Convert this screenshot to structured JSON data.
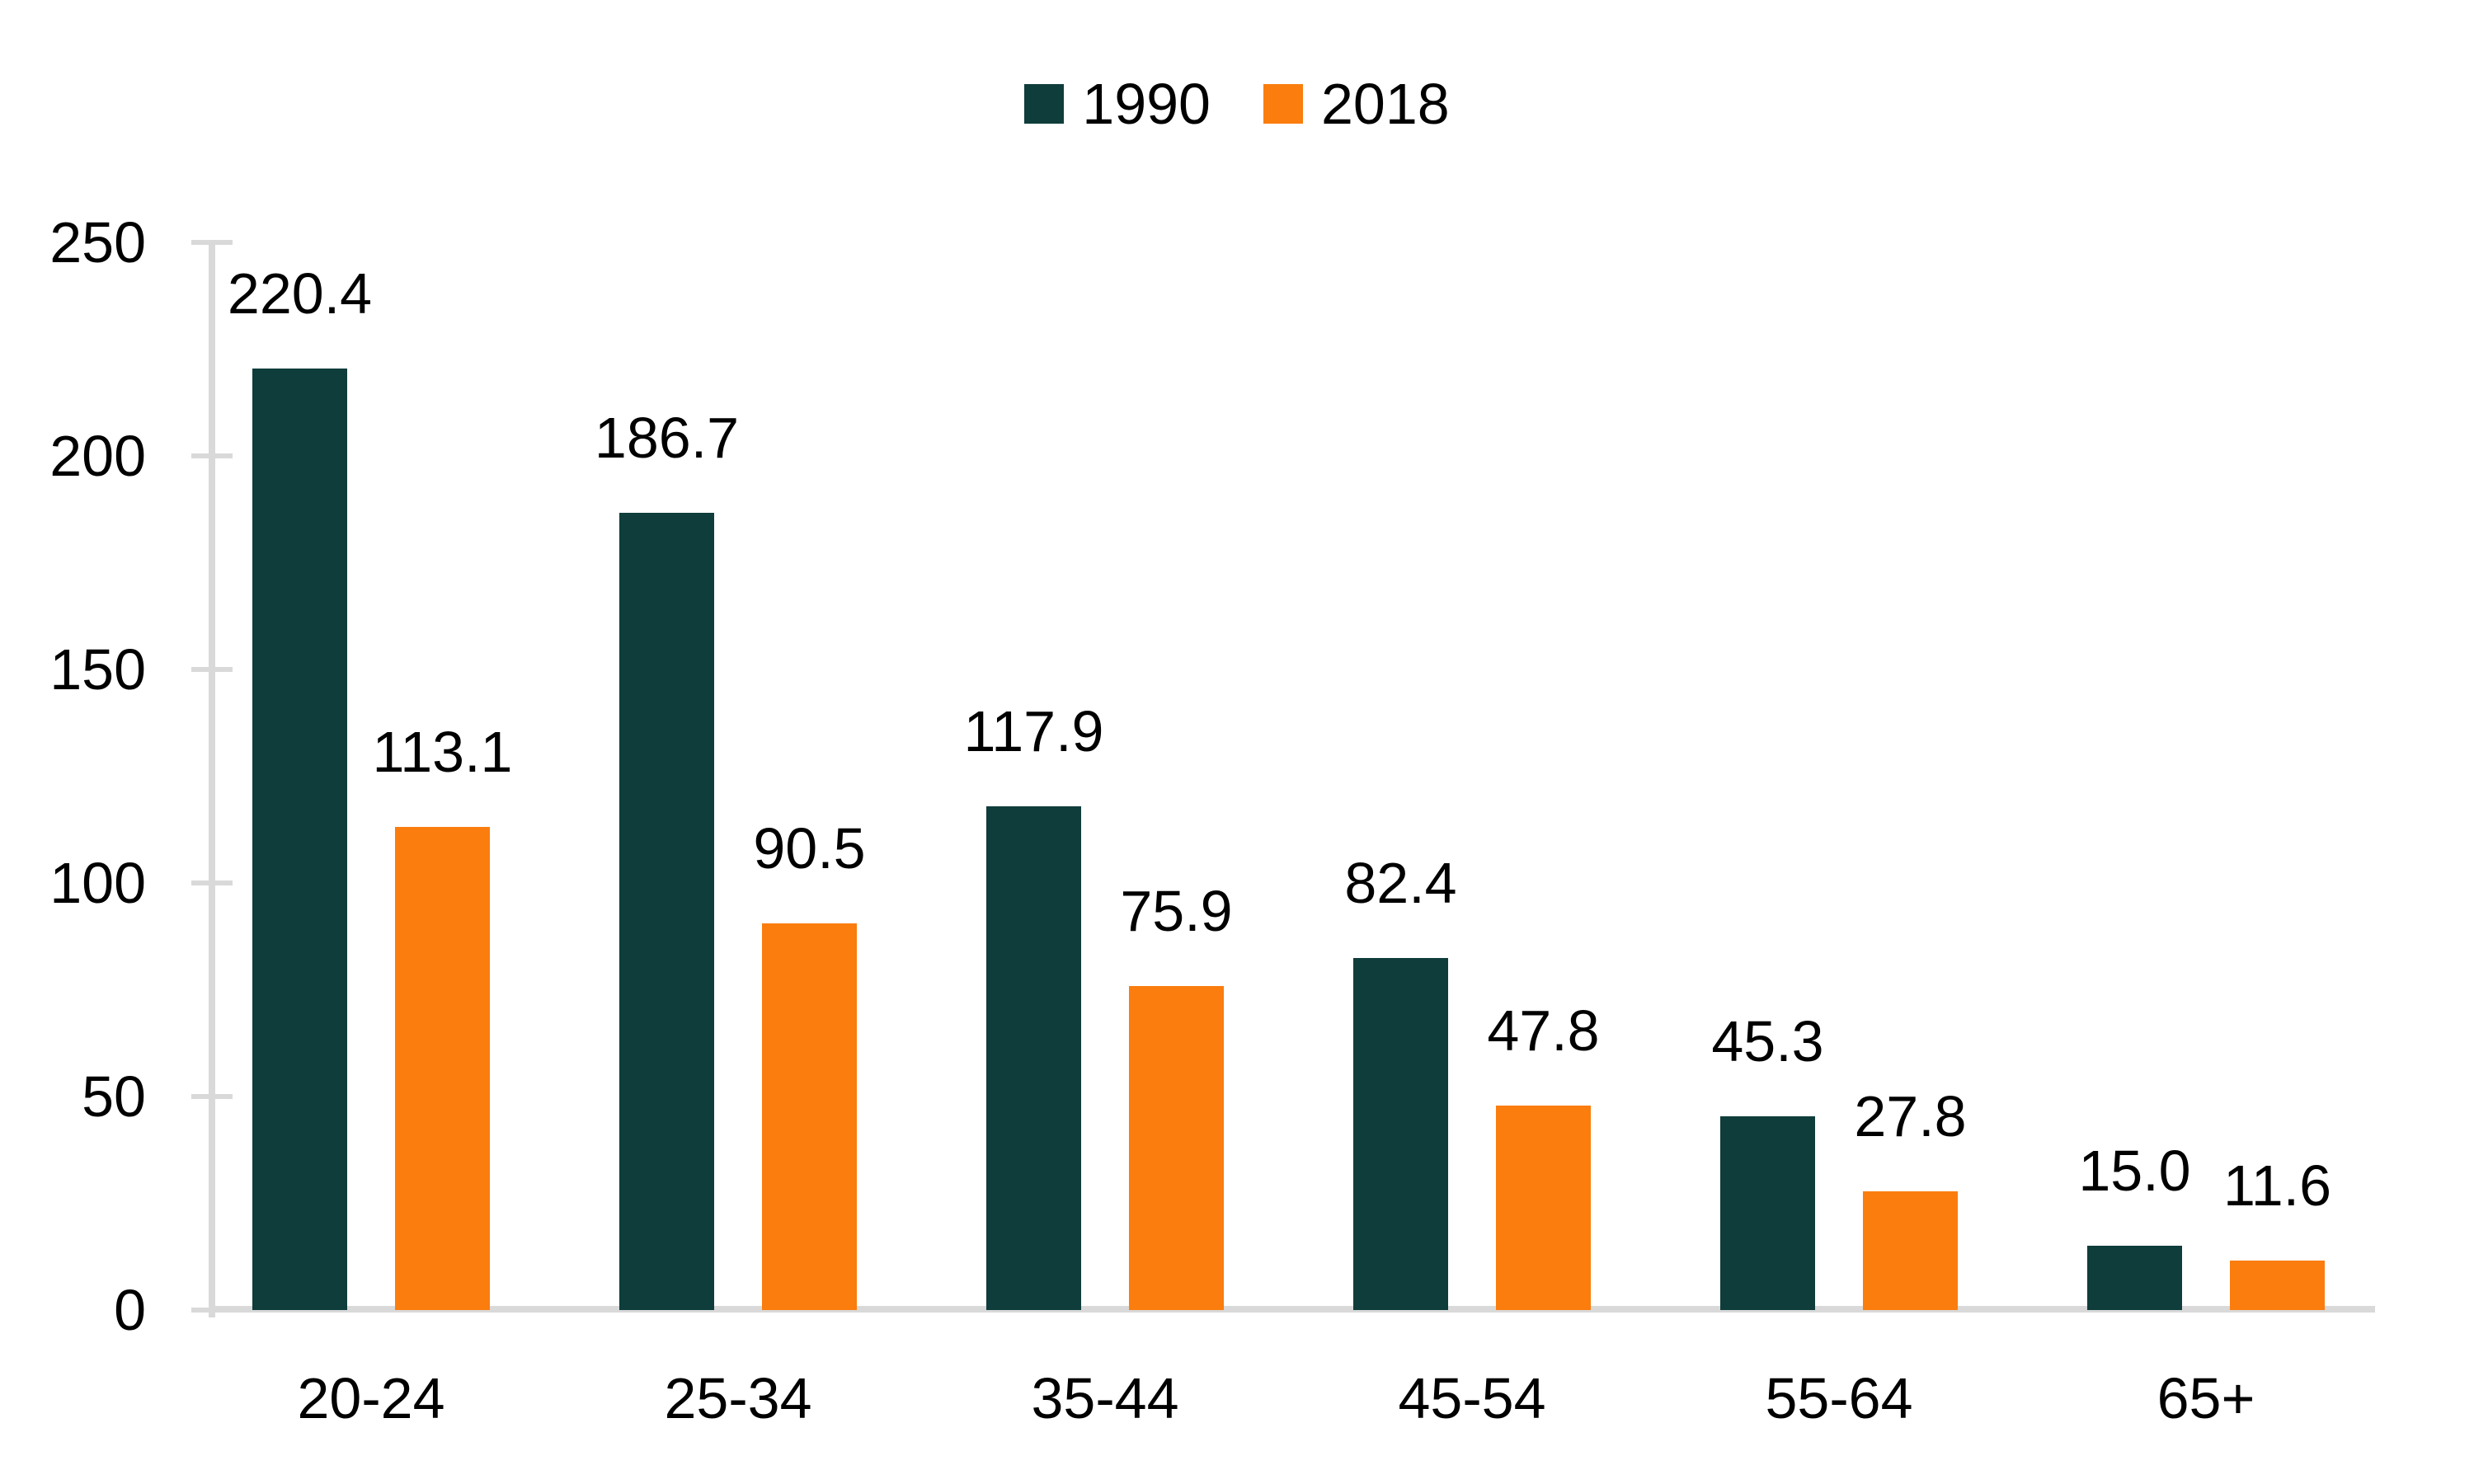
{
  "chart_data": {
    "type": "bar",
    "title": "",
    "xlabel": "",
    "ylabel": "",
    "categories": [
      "20-24",
      "25-34",
      "35-44",
      "45-54",
      "55-64",
      "65+"
    ],
    "series": [
      {
        "name": "1990",
        "color": "#0f3d3b",
        "values": [
          220.4,
          186.7,
          117.9,
          82.4,
          45.3,
          15.0
        ],
        "value_labels": [
          "220.4",
          "186.7",
          "117.9",
          "82.4",
          "45.3",
          "15.0"
        ]
      },
      {
        "name": "2018",
        "color": "#fa7d0e",
        "values": [
          113.1,
          90.5,
          75.9,
          47.8,
          27.8,
          11.6
        ],
        "value_labels": [
          "113.1",
          "90.5",
          "75.9",
          "47.8",
          "27.8",
          "11.6"
        ]
      }
    ],
    "y_axis": {
      "min": 0,
      "max": 250,
      "step": 50,
      "tick_labels": [
        "0",
        "50",
        "100",
        "150",
        "200",
        "250"
      ]
    },
    "legend_position": "top-center",
    "grid": false,
    "data_labels": true,
    "axis_color": "#d9d9d9",
    "text_color": "#000000",
    "background_color": "#ffffff"
  }
}
